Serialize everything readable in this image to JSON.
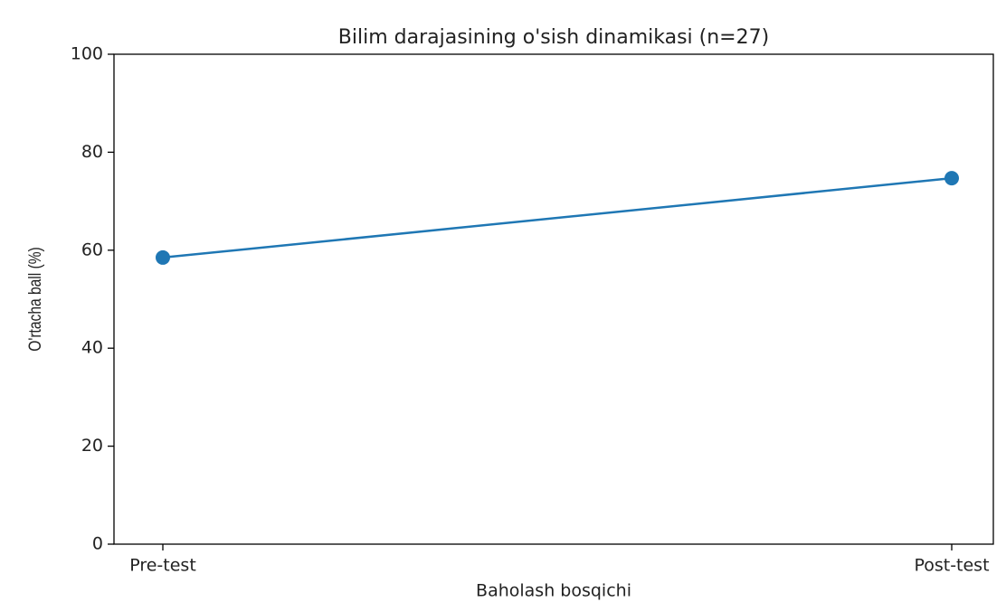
{
  "chart_data": {
    "type": "line",
    "title": "Bilim darajasining o'sish dinamikasi (n=27)",
    "x_label": "Baholash bosqichi",
    "y_label": "O'rtacha ball (%)",
    "categories": [
      "Pre-test",
      "Post-test"
    ],
    "values": [
      58.5,
      74.7
    ],
    "color": "#1f77b4",
    "ylim": [
      0,
      100
    ],
    "yticks": [
      0,
      20,
      40,
      60,
      80,
      100
    ],
    "grid": false
  }
}
